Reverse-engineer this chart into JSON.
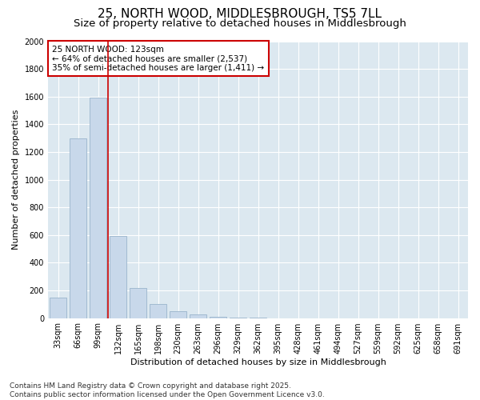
{
  "title_line1": "25, NORTH WOOD, MIDDLESBROUGH, TS5 7LL",
  "title_line2": "Size of property relative to detached houses in Middlesbrough",
  "xlabel": "Distribution of detached houses by size in Middlesbrough",
  "ylabel": "Number of detached properties",
  "categories": [
    "33sqm",
    "66sqm",
    "99sqm",
    "132sqm",
    "165sqm",
    "198sqm",
    "230sqm",
    "263sqm",
    "296sqm",
    "329sqm",
    "362sqm",
    "395sqm",
    "428sqm",
    "461sqm",
    "494sqm",
    "527sqm",
    "559sqm",
    "592sqm",
    "625sqm",
    "658sqm",
    "691sqm"
  ],
  "values": [
    145,
    1300,
    1595,
    590,
    215,
    100,
    50,
    25,
    10,
    5,
    2,
    0,
    0,
    0,
    0,
    0,
    0,
    0,
    0,
    0,
    0
  ],
  "bar_color": "#c8d8ea",
  "bar_edge_color": "#9ab4cc",
  "vline_color": "#cc0000",
  "vline_pos": 2.5,
  "annotation_text": "25 NORTH WOOD: 123sqm\n← 64% of detached houses are smaller (2,537)\n35% of semi-detached houses are larger (1,411) →",
  "annotation_box_facecolor": "#ffffff",
  "annotation_box_edgecolor": "#cc0000",
  "ylim": [
    0,
    2000
  ],
  "yticks": [
    0,
    200,
    400,
    600,
    800,
    1000,
    1200,
    1400,
    1600,
    1800,
    2000
  ],
  "plot_bg_color": "#dce8f0",
  "figure_bg_color": "#ffffff",
  "grid_color": "#ffffff",
  "footer_line1": "Contains HM Land Registry data © Crown copyright and database right 2025.",
  "footer_line2": "Contains public sector information licensed under the Open Government Licence v3.0.",
  "title_fontsize": 11,
  "subtitle_fontsize": 9.5,
  "axis_label_fontsize": 8,
  "tick_fontsize": 7,
  "annotation_fontsize": 7.5,
  "footer_fontsize": 6.5
}
